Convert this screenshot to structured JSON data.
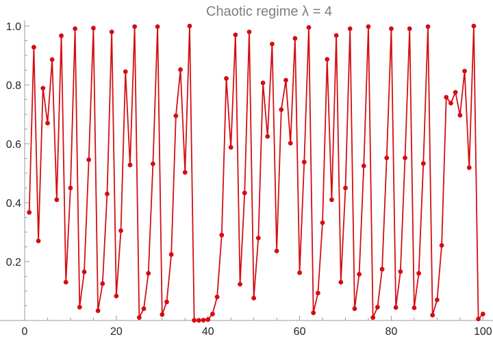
{
  "chart_data": {
    "type": "line",
    "title": "Chaotic regime λ = 4",
    "xlabel": "",
    "ylabel": "",
    "xlim": [
      0,
      101
    ],
    "ylim": [
      0,
      1.0
    ],
    "x_ticks": [
      0,
      20,
      40,
      60,
      80,
      100
    ],
    "y_ticks": [
      0.2,
      0.4,
      0.6,
      0.8,
      1.0
    ],
    "x_tick_labels": [
      "0",
      "20",
      "40",
      "60",
      "80",
      "100"
    ],
    "y_tick_labels": [
      "0.2",
      "0.4",
      "0.6",
      "0.8",
      "1.0"
    ],
    "grid": false,
    "legend": "none",
    "series": [
      {
        "color": "#d40d12",
        "marker": "circle",
        "x": [
          1,
          2,
          3,
          4,
          5,
          6,
          7,
          8,
          9,
          10,
          11,
          12,
          13,
          14,
          15,
          16,
          17,
          18,
          19,
          20,
          21,
          22,
          23,
          24,
          25,
          26,
          27,
          28,
          29,
          30,
          31,
          32,
          33,
          34,
          35,
          36,
          37,
          38,
          39,
          40,
          41,
          42,
          43,
          44,
          45,
          46,
          47,
          48,
          49,
          50,
          51,
          52,
          53,
          54,
          55,
          56,
          57,
          58,
          59,
          60,
          61,
          62,
          63,
          64,
          65,
          66,
          67,
          68,
          69,
          70,
          71,
          72,
          73,
          74,
          75,
          76,
          77,
          78,
          79,
          80,
          81,
          82,
          83,
          84,
          85,
          86,
          87,
          88,
          89,
          90,
          91,
          92,
          93,
          94,
          95,
          96,
          97,
          98,
          99,
          100
        ],
        "y": [
          0.367,
          0.928,
          0.27,
          0.789,
          0.67,
          0.886,
          0.41,
          0.967,
          0.13,
          0.45,
          0.991,
          0.045,
          0.165,
          0.546,
          0.993,
          0.033,
          0.125,
          0.43,
          0.98,
          0.083,
          0.305,
          0.845,
          0.528,
          0.998,
          0.01,
          0.04,
          0.16,
          0.532,
          0.998,
          0.02,
          0.063,
          0.224,
          0.695,
          0.852,
          0.503,
          1.0,
          0.0005,
          0.0005,
          0.001,
          0.003,
          0.022,
          0.08,
          0.29,
          0.822,
          0.588,
          0.97,
          0.123,
          0.433,
          0.98,
          0.076,
          0.28,
          0.807,
          0.625,
          0.939,
          0.236,
          0.716,
          0.816,
          0.602,
          0.958,
          0.162,
          0.538,
          0.995,
          0.026,
          0.093,
          0.332,
          0.887,
          0.41,
          0.968,
          0.13,
          0.45,
          0.991,
          0.04,
          0.157,
          0.525,
          0.998,
          0.01,
          0.045,
          0.174,
          0.552,
          0.991,
          0.044,
          0.166,
          0.552,
          0.991,
          0.043,
          0.16,
          0.533,
          0.998,
          0.018,
          0.07,
          0.255,
          0.758,
          0.738,
          0.775,
          0.697,
          0.847,
          0.519,
          1.0,
          0.005,
          0.022
        ]
      }
    ]
  }
}
